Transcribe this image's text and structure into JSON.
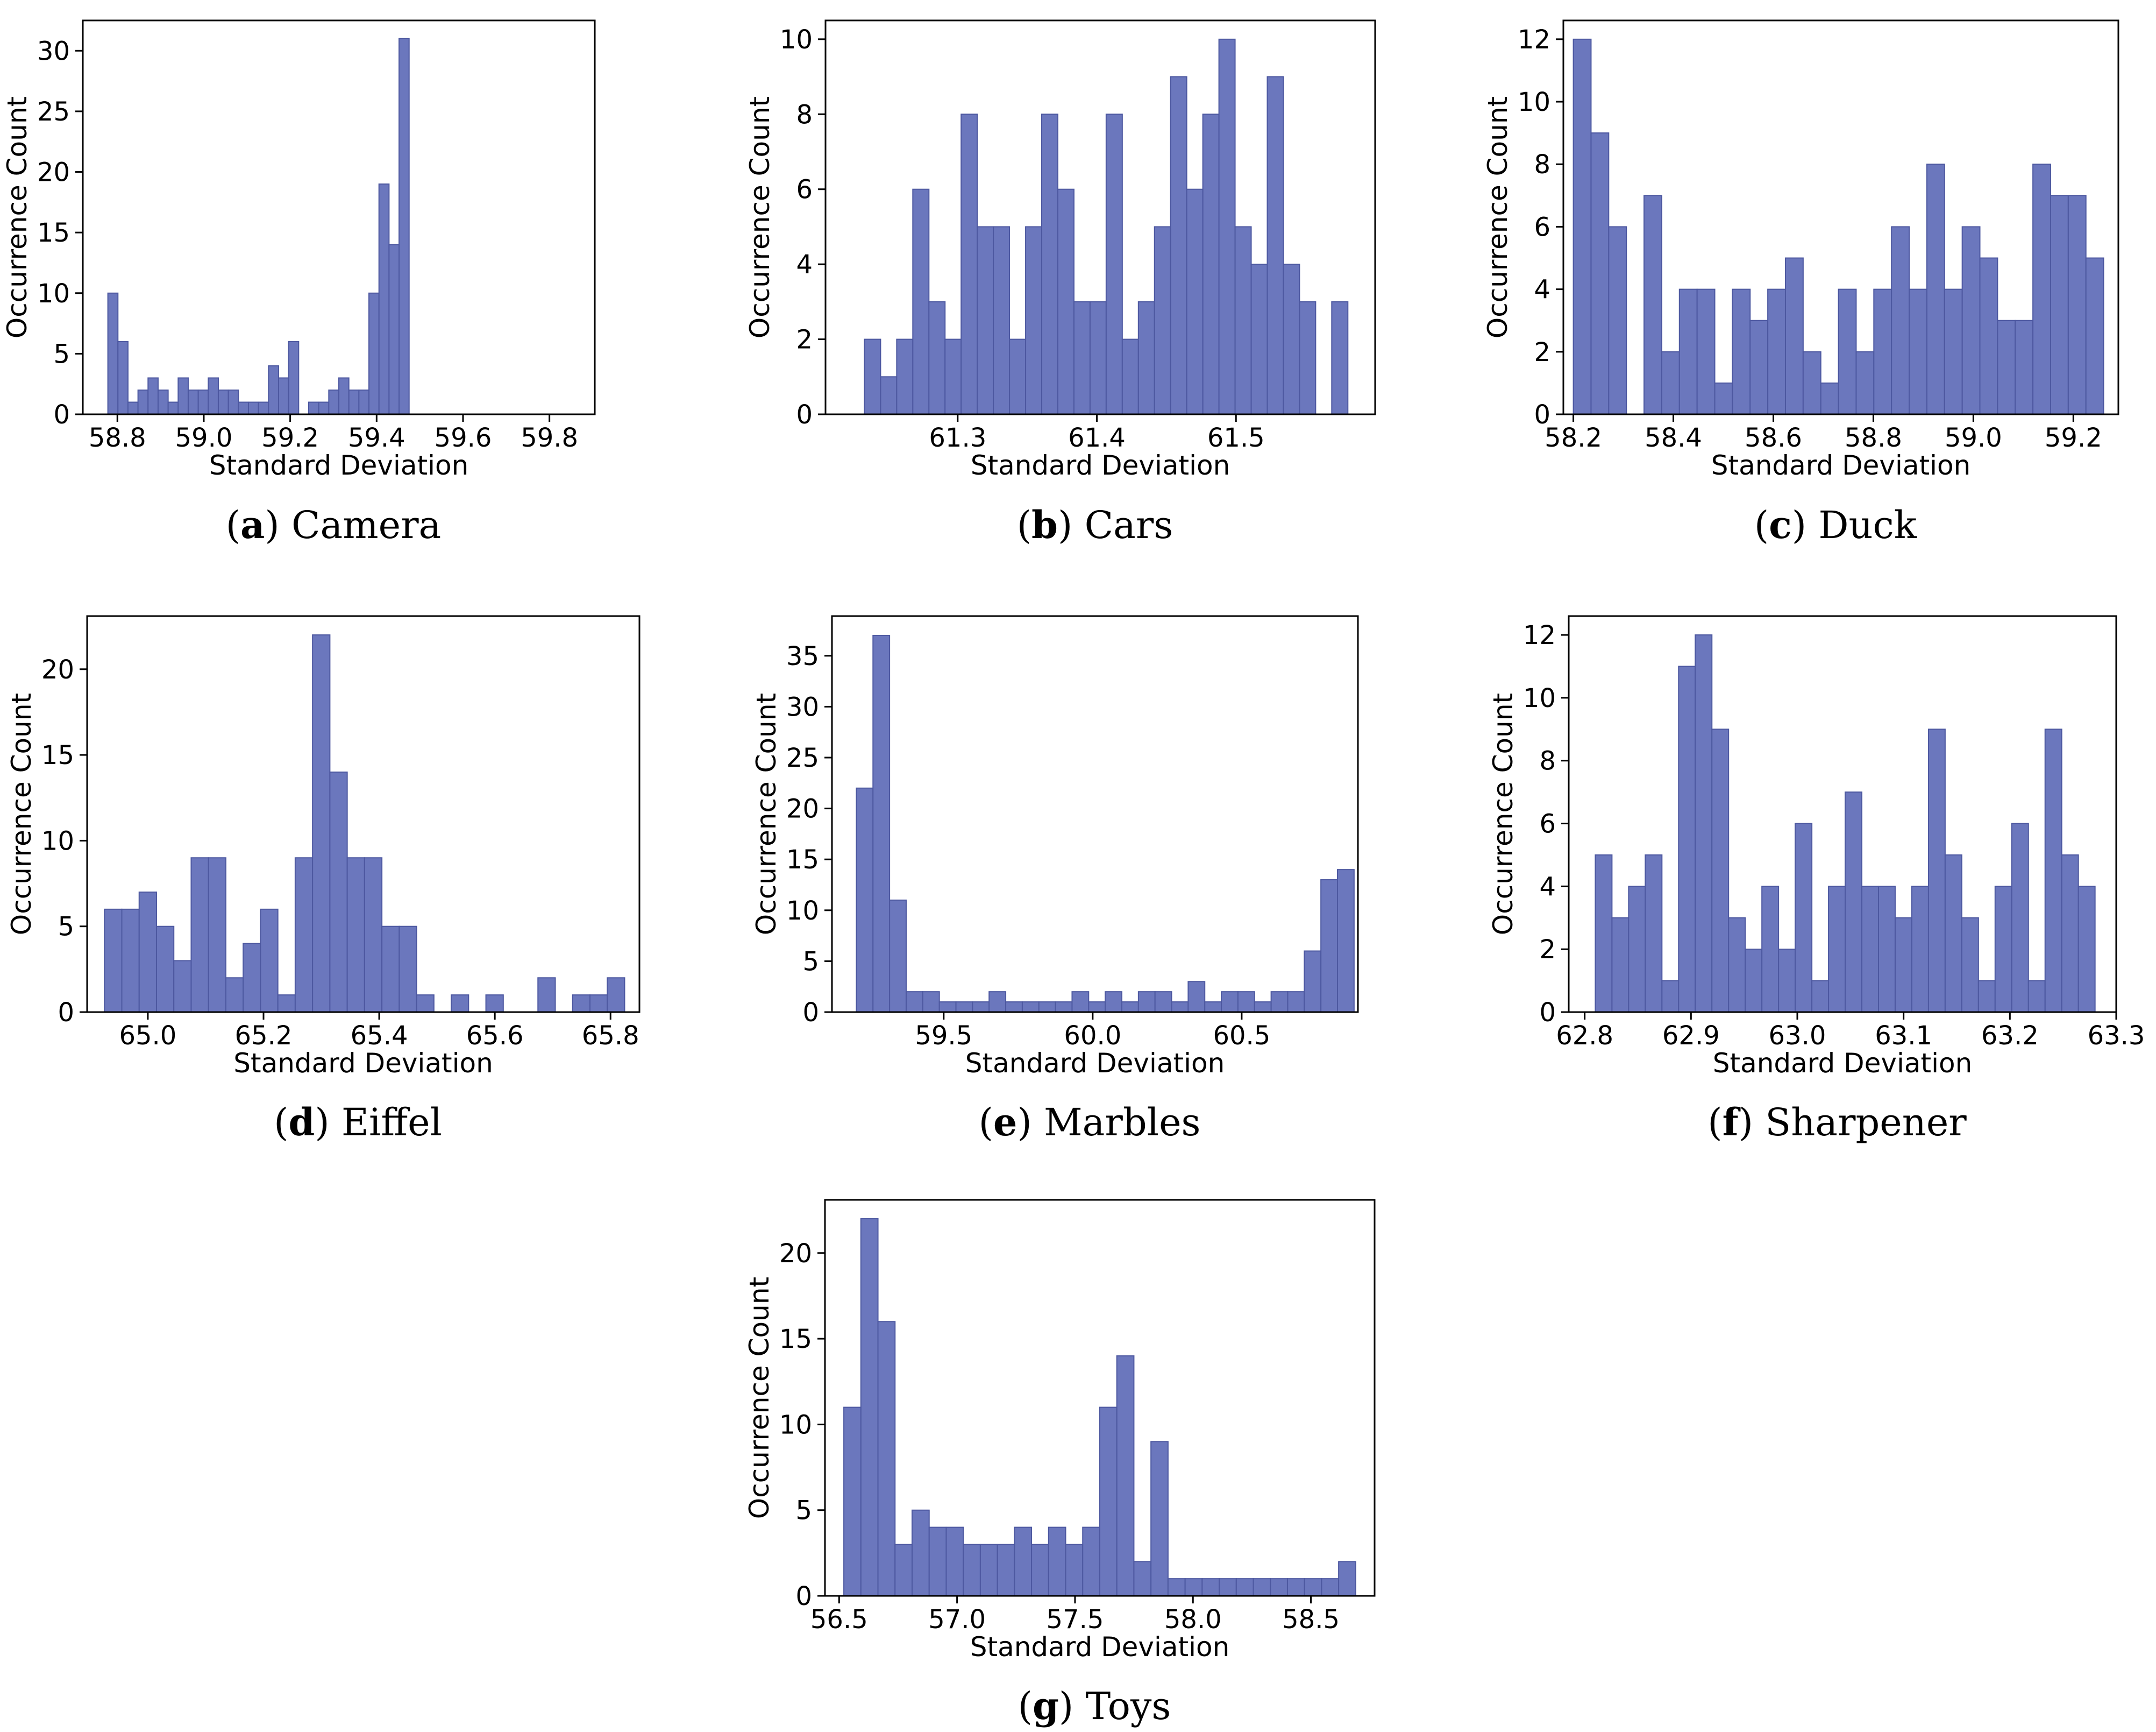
{
  "figure": {
    "bar_color": "#6b77bd",
    "bar_edge_color": "#4d58a0"
  },
  "chart_data": [
    {
      "type": "bar",
      "id": "camera",
      "caption_letter": "a",
      "caption_name": "Camera",
      "xlabel": "Standard Deviation",
      "ylabel": "Occurrence Count",
      "x_start": 58.778,
      "bin_width": 0.02324,
      "values": [
        10,
        6,
        1,
        2,
        3,
        2,
        1,
        3,
        2,
        2,
        3,
        2,
        2,
        1,
        1,
        1,
        4,
        3,
        6,
        0,
        1,
        1,
        2,
        3,
        2,
        2,
        10,
        19,
        14,
        31
      ],
      "xlim": [
        58.72,
        59.905
      ],
      "ylim": [
        0,
        32.5
      ],
      "xticks": [
        58.8,
        59.0,
        59.2,
        59.4,
        59.6,
        59.8
      ],
      "xtick_labels": [
        "58.8",
        "59.0",
        "59.2",
        "59.4",
        "59.6",
        "59.8"
      ],
      "yticks": [
        0,
        5,
        10,
        15,
        20,
        25,
        30
      ],
      "ytick_labels": [
        "0",
        "5",
        "10",
        "15",
        "20",
        "25",
        "30"
      ]
    },
    {
      "type": "bar",
      "id": "cars",
      "caption_letter": "b",
      "caption_name": "Cars",
      "xlabel": "Standard Deviation",
      "ylabel": "Occurrence Count",
      "x_start": 61.233,
      "bin_width": 0.01158,
      "values": [
        2,
        1,
        2,
        6,
        3,
        2,
        8,
        5,
        5,
        2,
        5,
        8,
        6,
        3,
        3,
        8,
        2,
        3,
        5,
        9,
        6,
        8,
        10,
        5,
        4,
        9,
        4,
        3,
        0,
        3
      ],
      "xlim": [
        61.205,
        61.6
      ],
      "ylim": [
        0,
        10.5
      ],
      "xticks": [
        61.3,
        61.4,
        61.5
      ],
      "xtick_labels": [
        "61.3",
        "61.4",
        "61.5"
      ],
      "yticks": [
        0,
        2,
        4,
        6,
        8,
        10
      ],
      "ytick_labels": [
        "0",
        "2",
        "4",
        "6",
        "8",
        "10"
      ]
    },
    {
      "type": "bar",
      "id": "duck",
      "caption_letter": "c",
      "caption_name": "Duck",
      "xlabel": "Standard Deviation",
      "ylabel": "Occurrence Count",
      "x_start": 58.2,
      "bin_width": 0.03535,
      "values": [
        12,
        9,
        6,
        0,
        7,
        2,
        4,
        4,
        1,
        4,
        3,
        4,
        5,
        2,
        1,
        4,
        2,
        4,
        6,
        4,
        8,
        4,
        6,
        5,
        3,
        3,
        8,
        7,
        7,
        5
      ],
      "xlim": [
        58.18,
        59.29
      ],
      "ylim": [
        0,
        12.6
      ],
      "xticks": [
        58.2,
        58.4,
        58.6,
        58.8,
        59.0,
        59.2
      ],
      "xtick_labels": [
        "58.2",
        "58.4",
        "58.6",
        "58.8",
        "59.0",
        "59.2"
      ],
      "yticks": [
        0,
        2,
        4,
        6,
        8,
        10,
        12
      ],
      "ytick_labels": [
        "0",
        "2",
        "4",
        "6",
        "8",
        "10",
        "12"
      ]
    },
    {
      "type": "bar",
      "id": "eiffel",
      "caption_letter": "d",
      "caption_name": "Eiffel",
      "xlabel": "Standard Deviation",
      "ylabel": "Occurrence Count",
      "x_start": 64.925,
      "bin_width": 0.02998,
      "values": [
        6,
        6,
        7,
        5,
        3,
        9,
        9,
        2,
        4,
        6,
        1,
        9,
        22,
        14,
        9,
        9,
        5,
        5,
        1,
        0,
        1,
        0,
        1,
        0,
        0,
        2,
        0,
        1,
        1,
        2
      ],
      "xlim": [
        64.895,
        65.85
      ],
      "ylim": [
        0,
        23.1
      ],
      "xticks": [
        65.0,
        65.2,
        65.4,
        65.6,
        65.8
      ],
      "xtick_labels": [
        "65.0",
        "65.2",
        "65.4",
        "65.6",
        "65.8"
      ],
      "yticks": [
        0,
        5,
        10,
        15,
        20
      ],
      "ytick_labels": [
        "0",
        "5",
        "10",
        "15",
        "20"
      ]
    },
    {
      "type": "bar",
      "id": "marbles",
      "caption_letter": "e",
      "caption_name": "Marbles",
      "xlabel": "Standard Deviation",
      "ylabel": "Occurrence Count",
      "x_start": 59.207,
      "bin_width": 0.05567,
      "values": [
        22,
        37,
        11,
        2,
        2,
        1,
        1,
        1,
        2,
        1,
        1,
        1,
        1,
        2,
        1,
        2,
        1,
        2,
        2,
        1,
        3,
        1,
        2,
        2,
        1,
        2,
        2,
        6,
        13,
        14
      ],
      "xlim": [
        59.125,
        60.89
      ],
      "ylim": [
        0,
        38.9
      ],
      "xticks": [
        59.5,
        60.0,
        60.5
      ],
      "xtick_labels": [
        "59.5",
        "60.0",
        "60.5"
      ],
      "yticks": [
        0,
        5,
        10,
        15,
        20,
        25,
        30,
        35
      ],
      "ytick_labels": [
        "0",
        "5",
        "10",
        "15",
        "20",
        "25",
        "30",
        "35"
      ]
    },
    {
      "type": "bar",
      "id": "sharpener",
      "caption_letter": "f",
      "caption_name": "Sharpener",
      "xlabel": "Standard Deviation",
      "ylabel": "Occurrence Count",
      "x_start": 62.81,
      "bin_width": 0.01567,
      "values": [
        5,
        3,
        4,
        5,
        1,
        11,
        12,
        9,
        3,
        2,
        4,
        2,
        6,
        1,
        4,
        7,
        4,
        4,
        3,
        4,
        9,
        5,
        3,
        1,
        4,
        6,
        1,
        9,
        5,
        4
      ],
      "xlim": [
        62.785,
        63.3
      ],
      "ylim": [
        0,
        12.6
      ],
      "xticks": [
        62.8,
        62.9,
        63.0,
        63.1,
        63.2,
        63.3
      ],
      "xtick_labels": [
        "62.8",
        "62.9",
        "63.0",
        "63.1",
        "63.2",
        "63.3"
      ],
      "yticks": [
        0,
        2,
        4,
        6,
        8,
        10,
        12
      ],
      "ytick_labels": [
        "0",
        "2",
        "4",
        "6",
        "8",
        "10",
        "12"
      ]
    },
    {
      "type": "bar",
      "id": "toys",
      "caption_letter": "g",
      "caption_name": "Toys",
      "xlabel": "Standard Deviation",
      "ylabel": "Occurrence Count",
      "x_start": 56.52,
      "bin_width": 0.07233,
      "values": [
        11,
        22,
        16,
        3,
        5,
        4,
        4,
        3,
        3,
        3,
        4,
        3,
        4,
        3,
        4,
        11,
        14,
        2,
        9,
        1,
        1,
        1,
        1,
        1,
        1,
        1,
        1,
        1,
        1,
        2
      ],
      "xlim": [
        56.44,
        58.77
      ],
      "ylim": [
        0,
        23.1
      ],
      "xticks": [
        56.5,
        57.0,
        57.5,
        58.0,
        58.5
      ],
      "xtick_labels": [
        "56.5",
        "57.0",
        "57.5",
        "58.0",
        "58.5"
      ],
      "yticks": [
        0,
        5,
        10,
        15,
        20
      ],
      "ytick_labels": [
        "0",
        "5",
        "10",
        "15",
        "20"
      ]
    }
  ]
}
